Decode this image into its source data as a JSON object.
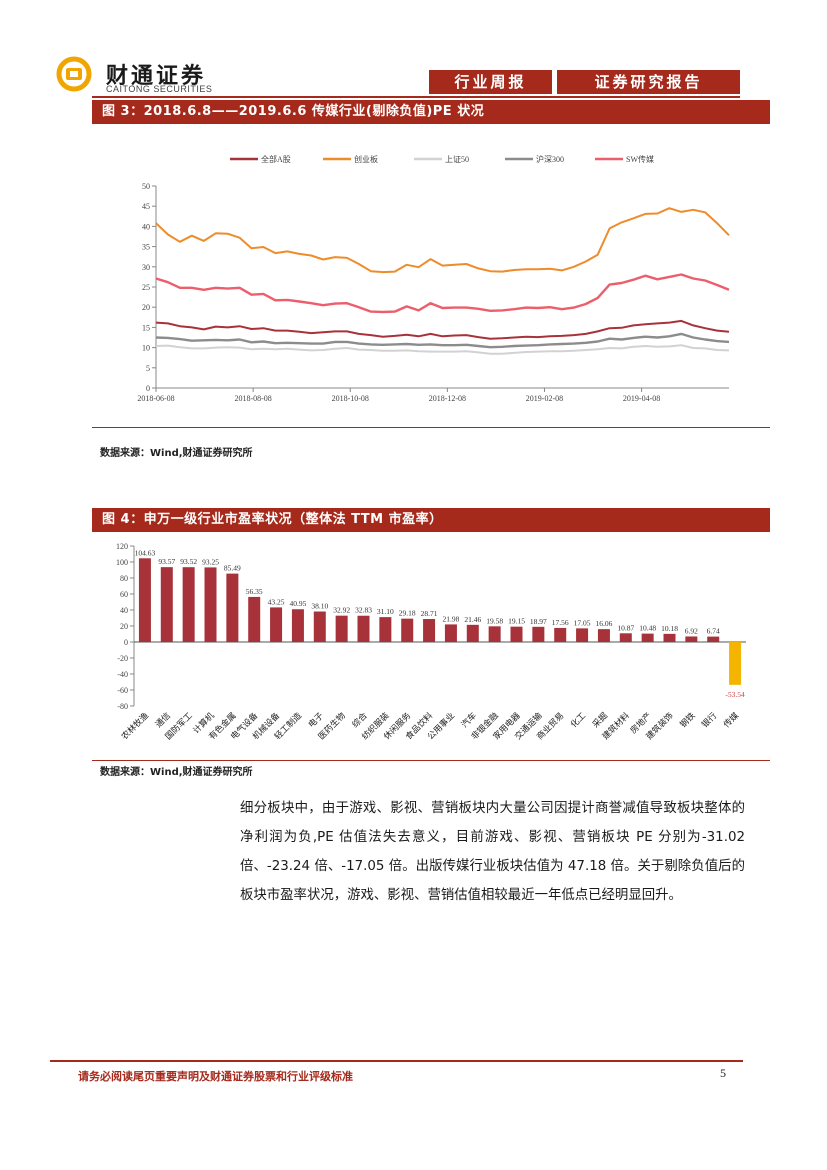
{
  "header": {
    "logo_cn": "财通证券",
    "logo_en": "CAITONG SECURITIES",
    "tag_weekly": "行业周报",
    "tag_report": "证券研究报告",
    "colors": {
      "brand": "#a52a1c",
      "logo_gold": "#f0a500"
    }
  },
  "figure3": {
    "title": "图 3：2018.6.8——2019.6.6 传媒行业(剔除负值)PE 状况",
    "source": "数据来源：Wind,财通证券研究所"
  },
  "figure4": {
    "title": "图 4：申万一级行业市盈率状况（整体法 TTM 市盈率）",
    "source": "数据来源：Wind,财通证券研究所"
  },
  "paragraph": "细分板块中，由于游戏、影视、营销板块内大量公司因提计商誉减值导致板块整体的净利润为负,PE 估值法失去意义，目前游戏、影视、营销板块 PE 分别为-31.02 倍、-23.24 倍、-17.05 倍。出版传媒行业板块估值为 47.18 倍。关于剔除负值后的板块市盈率状况，游戏、影视、营销估值相较最近一年低点已经明显回升。",
  "footer": {
    "disclaimer": "请务必阅读尾页重要声明及财通证券股票和行业评级标准",
    "page": "5"
  },
  "chart_data": [
    {
      "type": "line",
      "ylim": [
        0,
        50
      ],
      "yticks": [
        0,
        5,
        10,
        15,
        20,
        25,
        30,
        35,
        40,
        45,
        50
      ],
      "xticks": [
        "2018-06-08",
        "2018-08-08",
        "2018-10-08",
        "2018-12-08",
        "2019-02-08",
        "2019-04-08"
      ],
      "x_count": 49,
      "legend_position": "top",
      "series": [
        {
          "name": "全部A股",
          "color": "#a8323a",
          "width": 2,
          "values": [
            16.2,
            16.0,
            15.3,
            15.0,
            14.5,
            15.2,
            15.0,
            15.3,
            14.6,
            14.8,
            14.2,
            14.2,
            13.9,
            13.6,
            13.8,
            14.0,
            14.0,
            13.4,
            13.1,
            12.7,
            12.9,
            13.2,
            12.8,
            13.4,
            12.8,
            13.0,
            13.1,
            12.6,
            12.2,
            12.3,
            12.5,
            12.7,
            12.6,
            12.8,
            12.9,
            13.1,
            13.4,
            14.0,
            14.8,
            14.9,
            15.5,
            15.8,
            16.0,
            16.2,
            16.6,
            15.5,
            14.8,
            14.2,
            13.9
          ]
        },
        {
          "name": "创业板",
          "color": "#ee8b2b",
          "width": 2,
          "values": [
            40.8,
            38.0,
            36.2,
            37.7,
            36.4,
            38.3,
            38.2,
            37.2,
            34.6,
            34.9,
            33.4,
            33.8,
            33.2,
            32.8,
            31.8,
            32.4,
            32.2,
            30.7,
            28.9,
            28.7,
            28.8,
            30.5,
            29.9,
            31.9,
            30.3,
            30.5,
            30.7,
            29.6,
            28.9,
            28.8,
            29.2,
            29.4,
            29.4,
            29.5,
            29.1,
            30.0,
            31.3,
            33.0,
            39.5,
            41.0,
            42.0,
            43.1,
            43.2,
            44.5,
            43.6,
            44.1,
            43.5,
            40.8,
            37.8
          ]
        },
        {
          "name": "上证50",
          "color": "#d2d2d2",
          "width": 2,
          "values": [
            10.4,
            10.5,
            10.1,
            9.8,
            9.8,
            10.0,
            10.1,
            10.0,
            9.6,
            9.7,
            9.6,
            9.7,
            9.5,
            9.3,
            9.4,
            9.7,
            9.9,
            9.5,
            9.4,
            9.2,
            9.2,
            9.3,
            9.1,
            9.0,
            9.0,
            9.0,
            9.1,
            8.8,
            8.5,
            8.5,
            8.7,
            8.9,
            9.0,
            9.1,
            9.1,
            9.2,
            9.4,
            9.6,
            9.9,
            9.8,
            10.2,
            10.4,
            10.2,
            10.3,
            10.6,
            9.9,
            9.8,
            9.4,
            9.3
          ]
        },
        {
          "name": "沪深300",
          "color": "#8c8c8c",
          "width": 2.4,
          "values": [
            12.5,
            12.4,
            12.1,
            11.7,
            11.8,
            11.9,
            11.8,
            12.0,
            11.3,
            11.5,
            11.1,
            11.2,
            11.1,
            11.0,
            11.0,
            11.4,
            11.4,
            11.0,
            10.8,
            10.7,
            10.8,
            10.9,
            10.7,
            10.8,
            10.6,
            10.6,
            10.7,
            10.4,
            10.1,
            10.2,
            10.4,
            10.5,
            10.6,
            10.8,
            10.9,
            11.0,
            11.2,
            11.5,
            12.2,
            12.0,
            12.4,
            12.7,
            12.5,
            12.8,
            13.4,
            12.5,
            12.0,
            11.6,
            11.4
          ]
        },
        {
          "name": "SW传媒",
          "color": "#ec5e6b",
          "width": 2.4,
          "values": [
            27.1,
            26.2,
            24.8,
            24.8,
            24.3,
            24.8,
            24.6,
            24.8,
            23.1,
            23.3,
            21.7,
            21.8,
            21.4,
            21.0,
            20.5,
            20.9,
            21.0,
            20.0,
            18.9,
            18.8,
            18.9,
            20.2,
            19.2,
            21.0,
            19.8,
            19.9,
            19.9,
            19.6,
            19.1,
            19.2,
            19.5,
            19.9,
            19.8,
            20.0,
            19.5,
            19.9,
            20.8,
            22.3,
            25.6,
            26.0,
            26.8,
            27.8,
            26.9,
            27.5,
            28.1,
            27.1,
            26.6,
            25.5,
            24.3
          ]
        }
      ]
    },
    {
      "type": "bar",
      "ylim": [
        -80,
        120
      ],
      "yticks": [
        -80,
        -60,
        -40,
        -20,
        0,
        20,
        40,
        60,
        80,
        100,
        120
      ],
      "categories": [
        "农林牧渔",
        "通信",
        "国防军工",
        "计算机",
        "有色金属",
        "电气设备",
        "机械设备",
        "轻工制造",
        "电子",
        "医药生物",
        "综合",
        "纺织服装",
        "休闲服务",
        "食品饮料",
        "公用事业",
        "汽车",
        "非银金融",
        "家用电器",
        "交通运输",
        "商业贸易",
        "化工",
        "采掘",
        "建筑材料",
        "房地产",
        "建筑装饰",
        "钢铁",
        "银行",
        "传媒"
      ],
      "values": [
        104.63,
        93.57,
        93.52,
        93.25,
        85.49,
        56.35,
        43.25,
        40.95,
        38.1,
        32.92,
        32.83,
        31.1,
        29.18,
        28.71,
        21.98,
        21.46,
        19.58,
        19.15,
        18.97,
        17.56,
        17.05,
        16.06,
        10.87,
        10.48,
        10.18,
        6.92,
        6.74,
        -53.54
      ],
      "labels": [
        "104.63",
        "93.57",
        "93.52",
        "93.25",
        "85.49",
        "56.35",
        "43.25",
        "40.95",
        "38.10",
        "32.92",
        "32.83",
        "31.10",
        "29.18",
        "28.71",
        "21.98",
        "21.46",
        "19.58",
        "19.15",
        "18.97",
        "17.56",
        "17.05",
        "16.06",
        "10.87",
        "10.48",
        "10.18",
        "6.92",
        "6.74",
        "-53.54"
      ],
      "colors": {
        "positive": "#a8323a",
        "highlight": "#f4b400",
        "negative_label": "#d04040"
      }
    }
  ]
}
